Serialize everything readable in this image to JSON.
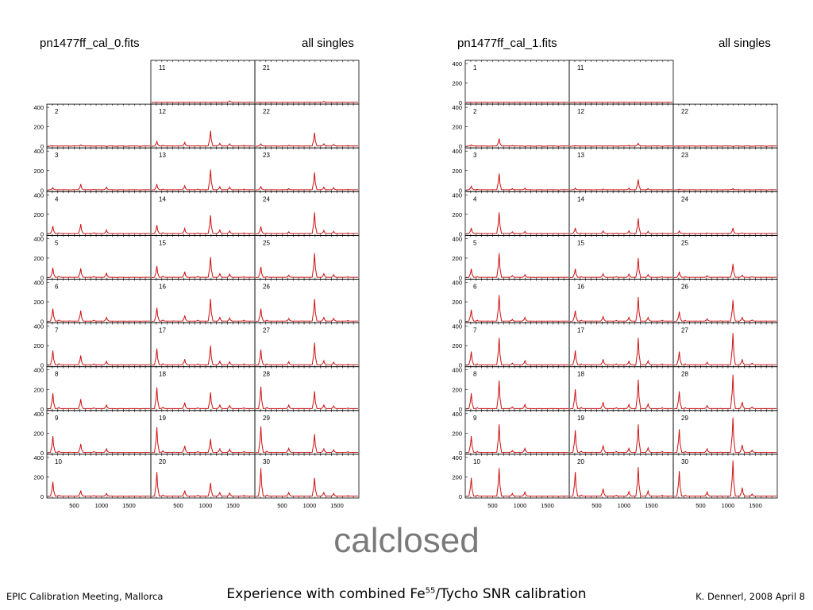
{
  "caption": "calclosed",
  "footer": {
    "left": "EPIC Calibration Meeting, Mallorca",
    "center_before": "Experience with combined Fe",
    "center_sup": "55",
    "center_after": "/Tycho SNR calibration",
    "right": "K. Dennerl, 2008 April 8"
  },
  "colors": {
    "trace": "#cc1111",
    "frame": "#000000",
    "caption": "#7a7a7a"
  },
  "chart_data": [
    {
      "type": "line",
      "title": "pn1477ff_cal_0.fits",
      "subtitle": "all singles",
      "layout": "small multiples, 3 columns x 10 rows",
      "x_ticks": [
        500,
        1000,
        1500
      ],
      "xlim": [
        0,
        1900
      ],
      "y_ticks": [
        0,
        200,
        400
      ],
      "ylim": [
        0,
        400
      ],
      "panels": [
        {
          "label": "11",
          "values": [
            0,
            5,
            2,
            2,
            2,
            2,
            2,
            2,
            18,
            2
          ]
        },
        {
          "label": "21",
          "values": [
            0,
            2,
            2,
            2,
            2,
            2,
            2,
            12,
            2,
            2
          ]
        },
        {
          "label": "2",
          "values": [
            0,
            6,
            4,
            3,
            14,
            3,
            2,
            2,
            2,
            2
          ]
        },
        {
          "label": "12",
          "values": [
            0,
            50,
            10,
            5,
            40,
            8,
            160,
            30,
            25,
            10
          ]
        },
        {
          "label": "22",
          "values": [
            0,
            25,
            5,
            3,
            10,
            5,
            140,
            25,
            20,
            8
          ]
        },
        {
          "label": "3",
          "values": [
            0,
            25,
            5,
            3,
            60,
            8,
            30,
            3,
            3,
            3
          ]
        },
        {
          "label": "13",
          "values": [
            0,
            60,
            10,
            5,
            45,
            10,
            210,
            35,
            30,
            10
          ]
        },
        {
          "label": "23",
          "values": [
            0,
            35,
            5,
            4,
            15,
            5,
            180,
            30,
            25,
            8
          ]
        },
        {
          "label": "4",
          "values": [
            0,
            80,
            10,
            5,
            100,
            12,
            40,
            3,
            3,
            3
          ]
        },
        {
          "label": "14",
          "values": [
            0,
            90,
            12,
            5,
            55,
            10,
            190,
            40,
            30,
            10
          ]
        },
        {
          "label": "24",
          "values": [
            0,
            75,
            8,
            5,
            20,
            6,
            220,
            35,
            25,
            10
          ]
        },
        {
          "label": "5",
          "values": [
            0,
            100,
            12,
            6,
            95,
            12,
            45,
            3,
            3,
            3
          ]
        },
        {
          "label": "15",
          "values": [
            0,
            120,
            15,
            6,
            60,
            12,
            210,
            40,
            35,
            10
          ]
        },
        {
          "label": "25",
          "values": [
            0,
            110,
            10,
            5,
            25,
            6,
            250,
            40,
            30,
            10
          ]
        },
        {
          "label": "6",
          "values": [
            0,
            130,
            15,
            6,
            110,
            12,
            40,
            3,
            3,
            3
          ]
        },
        {
          "label": "16",
          "values": [
            0,
            140,
            15,
            6,
            60,
            12,
            230,
            40,
            35,
            12
          ]
        },
        {
          "label": "26",
          "values": [
            0,
            130,
            12,
            5,
            30,
            6,
            230,
            40,
            30,
            10
          ]
        },
        {
          "label": "7",
          "values": [
            0,
            150,
            15,
            6,
            100,
            12,
            40,
            3,
            3,
            3
          ]
        },
        {
          "label": "17",
          "values": [
            0,
            170,
            15,
            6,
            60,
            12,
            200,
            40,
            35,
            12
          ]
        },
        {
          "label": "27",
          "values": [
            0,
            160,
            12,
            5,
            35,
            6,
            230,
            45,
            30,
            10
          ]
        },
        {
          "label": "8",
          "values": [
            0,
            160,
            15,
            6,
            100,
            12,
            40,
            3,
            3,
            3
          ]
        },
        {
          "label": "18",
          "values": [
            0,
            220,
            18,
            6,
            65,
            12,
            170,
            40,
            35,
            12
          ]
        },
        {
          "label": "28",
          "values": [
            0,
            230,
            15,
            5,
            40,
            6,
            180,
            40,
            30,
            10
          ]
        },
        {
          "label": "9",
          "values": [
            0,
            170,
            15,
            6,
            90,
            12,
            40,
            3,
            3,
            3
          ]
        },
        {
          "label": "19",
          "values": [
            0,
            260,
            18,
            6,
            70,
            12,
            140,
            40,
            35,
            12
          ]
        },
        {
          "label": "29",
          "values": [
            0,
            270,
            15,
            5,
            45,
            6,
            190,
            40,
            30,
            10
          ]
        },
        {
          "label": "10",
          "values": [
            0,
            150,
            12,
            6,
            60,
            10,
            30,
            3,
            3,
            3
          ]
        },
        {
          "label": "20",
          "values": [
            0,
            250,
            15,
            6,
            60,
            12,
            140,
            40,
            35,
            12
          ]
        },
        {
          "label": "30",
          "values": [
            0,
            290,
            15,
            5,
            40,
            6,
            190,
            40,
            30,
            10
          ]
        }
      ]
    },
    {
      "type": "line",
      "title": "pn1477ff_cal_1.fits",
      "subtitle": "all singles",
      "layout": "small multiples, 3 columns x 10 rows",
      "x_ticks": [
        500,
        1000,
        1500
      ],
      "xlim": [
        0,
        1900
      ],
      "y_ticks": [
        0,
        200,
        400
      ],
      "ylim": [
        0,
        400
      ],
      "panels": [
        {
          "label": "1",
          "values": [
            0,
            3,
            2,
            2,
            2,
            2,
            2,
            2,
            2,
            2
          ]
        },
        {
          "label": "11",
          "values": [
            0,
            3,
            2,
            2,
            2,
            2,
            2,
            2,
            2,
            2
          ]
        },
        {
          "label": "2",
          "values": [
            0,
            15,
            5,
            3,
            80,
            8,
            2,
            2,
            2,
            2
          ]
        },
        {
          "label": "12",
          "values": [
            0,
            8,
            4,
            3,
            5,
            3,
            10,
            30,
            3,
            2
          ]
        },
        {
          "label": "22",
          "values": [
            0,
            4,
            3,
            3,
            3,
            3,
            2,
            2,
            2,
            2
          ]
        },
        {
          "label": "3",
          "values": [
            0,
            40,
            8,
            4,
            170,
            15,
            20,
            3,
            3,
            3
          ]
        },
        {
          "label": "13",
          "values": [
            0,
            20,
            5,
            3,
            10,
            5,
            20,
            110,
            15,
            5
          ]
        },
        {
          "label": "23",
          "values": [
            0,
            8,
            4,
            3,
            5,
            3,
            15,
            3,
            3,
            3
          ]
        },
        {
          "label": "4",
          "values": [
            0,
            60,
            8,
            4,
            220,
            20,
            25,
            3,
            3,
            3
          ]
        },
        {
          "label": "14",
          "values": [
            0,
            60,
            8,
            4,
            30,
            8,
            30,
            160,
            25,
            8
          ]
        },
        {
          "label": "24",
          "values": [
            0,
            30,
            5,
            3,
            10,
            5,
            60,
            10,
            5,
            3
          ]
        },
        {
          "label": "5",
          "values": [
            0,
            90,
            10,
            5,
            250,
            20,
            30,
            3,
            3,
            3
          ]
        },
        {
          "label": "15",
          "values": [
            0,
            90,
            10,
            5,
            40,
            10,
            35,
            200,
            30,
            10
          ]
        },
        {
          "label": "25",
          "values": [
            0,
            60,
            8,
            4,
            20,
            6,
            140,
            25,
            10,
            5
          ]
        },
        {
          "label": "6",
          "values": [
            0,
            120,
            12,
            5,
            270,
            20,
            40,
            3,
            3,
            3
          ]
        },
        {
          "label": "16",
          "values": [
            0,
            110,
            12,
            5,
            50,
            10,
            40,
            250,
            40,
            12
          ]
        },
        {
          "label": "26",
          "values": [
            0,
            100,
            10,
            5,
            25,
            6,
            220,
            40,
            15,
            5
          ]
        },
        {
          "label": "7",
          "values": [
            0,
            140,
            12,
            5,
            280,
            20,
            45,
            3,
            3,
            3
          ]
        },
        {
          "label": "17",
          "values": [
            0,
            150,
            12,
            5,
            60,
            12,
            40,
            280,
            45,
            12
          ]
        },
        {
          "label": "27",
          "values": [
            0,
            140,
            12,
            5,
            30,
            6,
            330,
            60,
            20,
            5
          ]
        },
        {
          "label": "8",
          "values": [
            0,
            160,
            12,
            5,
            290,
            20,
            45,
            3,
            3,
            3
          ]
        },
        {
          "label": "18",
          "values": [
            0,
            200,
            15,
            6,
            70,
            12,
            45,
            300,
            50,
            12
          ]
        },
        {
          "label": "28",
          "values": [
            0,
            180,
            12,
            5,
            35,
            6,
            350,
            70,
            20,
            5
          ]
        },
        {
          "label": "9",
          "values": [
            0,
            170,
            12,
            5,
            290,
            20,
            45,
            3,
            3,
            3
          ]
        },
        {
          "label": "19",
          "values": [
            0,
            230,
            15,
            6,
            75,
            12,
            45,
            290,
            50,
            12
          ]
        },
        {
          "label": "29",
          "values": [
            0,
            240,
            12,
            5,
            40,
            6,
            360,
            80,
            25,
            5
          ]
        },
        {
          "label": "10",
          "values": [
            0,
            190,
            12,
            5,
            290,
            30,
            45,
            3,
            3,
            3
          ]
        },
        {
          "label": "20",
          "values": [
            0,
            250,
            15,
            6,
            80,
            12,
            50,
            300,
            55,
            12
          ]
        },
        {
          "label": "30",
          "values": [
            0,
            260,
            12,
            5,
            45,
            6,
            370,
            90,
            25,
            5
          ]
        }
      ]
    }
  ]
}
